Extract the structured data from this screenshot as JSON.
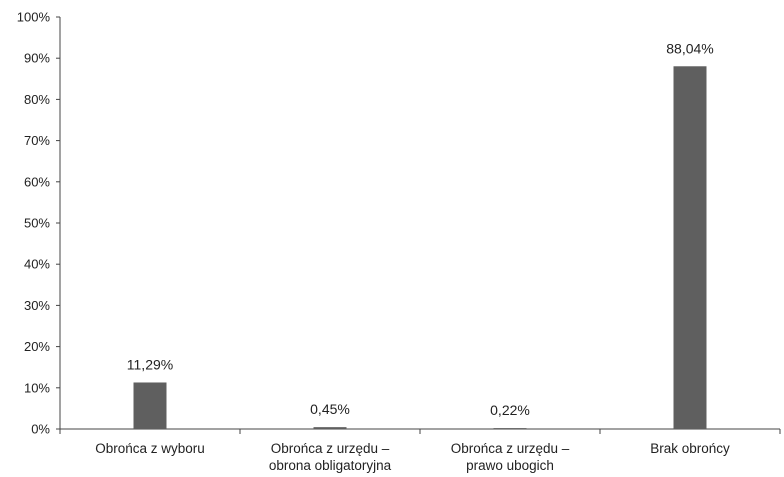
{
  "chart_data": {
    "type": "bar",
    "categories": [
      [
        "Obrońca z wyboru"
      ],
      [
        "Obrońca z urzędu –",
        "obrona obligatoryjna"
      ],
      [
        "Obrońca z urzędu –",
        "prawo ubogich"
      ],
      [
        "Brak obrońcy"
      ]
    ],
    "values": [
      11.29,
      0.45,
      0.22,
      88.04
    ],
    "data_labels": [
      "11,29%",
      "0,45%",
      "0,22%",
      "88,04%"
    ],
    "ylim": [
      0,
      100
    ],
    "y_ticks": [
      0,
      10,
      20,
      30,
      40,
      50,
      60,
      70,
      80,
      90,
      100
    ],
    "y_tick_labels": [
      "0%",
      "10%",
      "20%",
      "30%",
      "40%",
      "50%",
      "60%",
      "70%",
      "80%",
      "90%",
      "100%"
    ],
    "bar_color": "#5f5f5f",
    "grid": false,
    "legend": "none"
  }
}
